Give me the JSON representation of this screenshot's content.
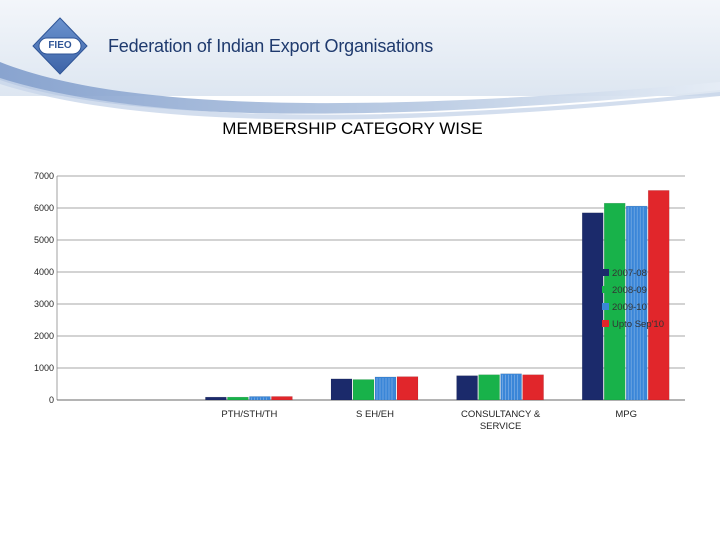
{
  "header": {
    "org_name": "Federation of Indian Export Organisations",
    "logo_text": "FIEO"
  },
  "colors": {
    "header_light": "#e9eef5",
    "header_mid": "#a9bfdc",
    "header_dark": "#6f8fbf",
    "logo_blue": "#4f78b9",
    "series": [
      "#1b2a6b",
      "#18b24a",
      "#3a86d8",
      "#e1262b"
    ]
  },
  "chart_data": {
    "type": "bar",
    "title": "MEMBERSHIP CATEGORY WISE",
    "categories": [
      "",
      "PTH/STH/TH",
      "S EH/EH",
      "CONSULTANCY & SERVICE",
      "MPG"
    ],
    "series": [
      {
        "name": "2007-08",
        "values": [
          0,
          90,
          660,
          760,
          5850
        ]
      },
      {
        "name": "2008-09",
        "values": [
          0,
          90,
          640,
          790,
          6150
        ]
      },
      {
        "name": "2009-10",
        "values": [
          0,
          110,
          720,
          820,
          6060
        ]
      },
      {
        "name": "Upto Sep'10",
        "values": [
          0,
          110,
          730,
          790,
          6550
        ]
      }
    ],
    "ylim": [
      0,
      7000
    ],
    "yticks": [
      0,
      1000,
      2000,
      3000,
      4000,
      5000,
      6000,
      7000
    ],
    "grid": true,
    "legend": "right"
  }
}
